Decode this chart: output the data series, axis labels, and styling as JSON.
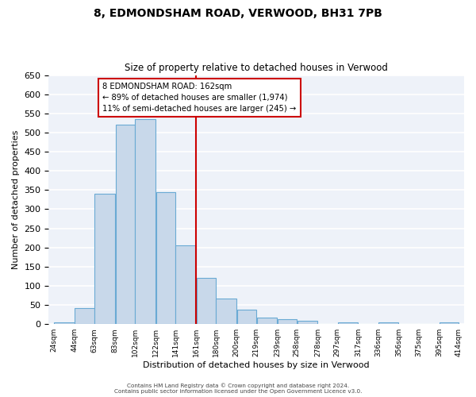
{
  "title": "8, EDMONDSHAM ROAD, VERWOOD, BH31 7PB",
  "subtitle": "Size of property relative to detached houses in Verwood",
  "xlabel": "Distribution of detached houses by size in Verwood",
  "ylabel": "Number of detached properties",
  "bin_edges": [
    24,
    44,
    63,
    83,
    102,
    122,
    141,
    161,
    180,
    200,
    219,
    239,
    258,
    278,
    297,
    317,
    336,
    356,
    375,
    395,
    414
  ],
  "bar_heights": [
    5,
    42,
    340,
    520,
    535,
    345,
    205,
    120,
    67,
    38,
    18,
    13,
    8,
    0,
    5,
    0,
    5,
    0,
    0,
    5
  ],
  "bar_color": "#c8d8ea",
  "bar_edge_color": "#6aaad4",
  "background_color": "#eef2f9",
  "grid_color": "#ffffff",
  "vline_x": 161,
  "vline_color": "#cc0000",
  "ylim": [
    0,
    650
  ],
  "yticks": [
    0,
    50,
    100,
    150,
    200,
    250,
    300,
    350,
    400,
    450,
    500,
    550,
    600,
    650
  ],
  "x_tick_labels": [
    "24sqm",
    "44sqm",
    "63sqm",
    "83sqm",
    "102sqm",
    "122sqm",
    "141sqm",
    "161sqm",
    "180sqm",
    "200sqm",
    "219sqm",
    "239sqm",
    "258sqm",
    "278sqm",
    "297sqm",
    "317sqm",
    "336sqm",
    "356sqm",
    "375sqm",
    "395sqm",
    "414sqm"
  ],
  "annotation_title": "8 EDMONDSHAM ROAD: 162sqm",
  "annotation_line1": "← 89% of detached houses are smaller (1,974)",
  "annotation_line2": "11% of semi-detached houses are larger (245) →",
  "annotation_box_color": "#ffffff",
  "annotation_box_edge_color": "#cc0000",
  "footer1": "Contains HM Land Registry data © Crown copyright and database right 2024.",
  "footer2": "Contains public sector information licensed under the Open Government Licence v3.0."
}
